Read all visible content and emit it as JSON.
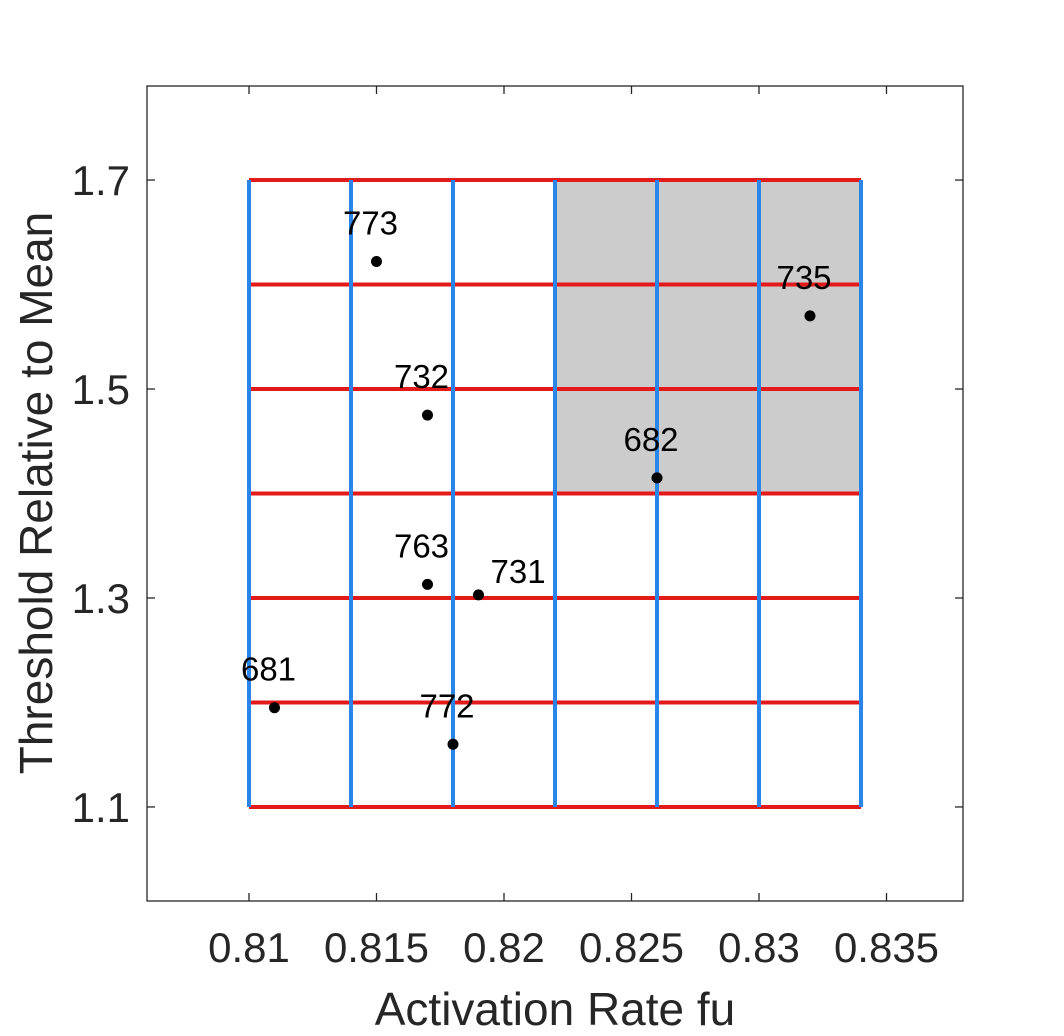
{
  "chart_data": {
    "type": "scatter",
    "title": "",
    "xlabel": "Activation Rate fu",
    "ylabel": "Threshold Relative to Mean",
    "xlim": [
      0.806,
      0.838
    ],
    "ylim": [
      1.01,
      1.79
    ],
    "xticks": [
      0.81,
      0.815,
      0.82,
      0.825,
      0.83,
      0.835
    ],
    "xtick_labels": [
      "0.81",
      "0.815",
      "0.82",
      "0.825",
      "0.83",
      "0.835"
    ],
    "yticks": [
      1.1,
      1.3,
      1.5,
      1.7
    ],
    "ytick_labels": [
      "1.1",
      "1.3",
      "1.5",
      "1.7"
    ],
    "grid_vertical_x": [
      0.81,
      0.814,
      0.818,
      0.822,
      0.826,
      0.83,
      0.834
    ],
    "grid_horizontal_y": [
      1.1,
      1.2,
      1.3,
      1.4,
      1.5,
      1.6,
      1.7
    ],
    "grid_x_range": [
      0.81,
      0.834
    ],
    "grid_y_range": [
      1.1,
      1.7
    ],
    "shaded_region": {
      "x": [
        0.822,
        0.834
      ],
      "y": [
        1.4,
        1.7
      ]
    },
    "points": [
      {
        "label": "773",
        "x": 0.815,
        "y": 1.622
      },
      {
        "label": "735",
        "x": 0.832,
        "y": 1.57
      },
      {
        "label": "732",
        "x": 0.817,
        "y": 1.475
      },
      {
        "label": "682",
        "x": 0.826,
        "y": 1.415
      },
      {
        "label": "763",
        "x": 0.817,
        "y": 1.313
      },
      {
        "label": "731",
        "x": 0.819,
        "y": 1.303
      },
      {
        "label": "681",
        "x": 0.811,
        "y": 1.195
      },
      {
        "label": "772",
        "x": 0.818,
        "y": 1.16
      }
    ],
    "colors": {
      "vertical_lines": "#2a85e8",
      "horizontal_lines": "#e31a1a",
      "shaded": "#cccccc",
      "points": "#000000",
      "axes": "#262626"
    }
  }
}
